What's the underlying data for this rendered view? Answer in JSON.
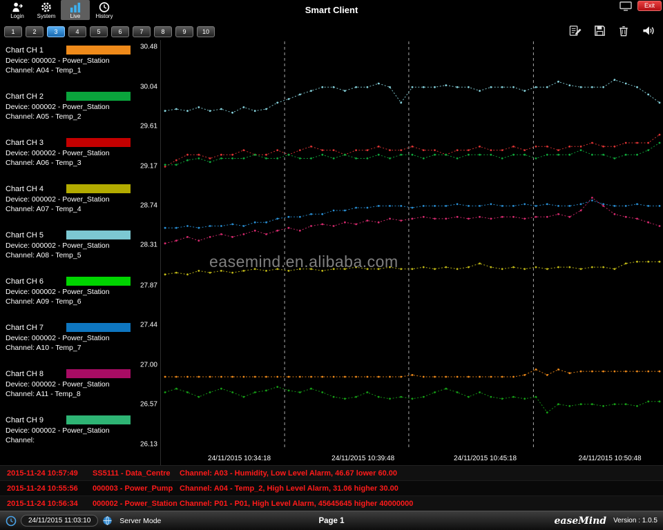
{
  "topbar": {
    "title": "Smart Client",
    "nav": [
      {
        "label": "Login",
        "icon": "login-icon",
        "active": false
      },
      {
        "label": "System",
        "icon": "system-icon",
        "active": false
      },
      {
        "label": "Live",
        "icon": "live-icon",
        "active": true
      },
      {
        "label": "History",
        "icon": "history-icon",
        "active": false
      }
    ],
    "exit_label": "Exit"
  },
  "toolbar": {
    "pages": [
      "1",
      "2",
      "3",
      "4",
      "5",
      "6",
      "7",
      "8",
      "9",
      "10"
    ],
    "active_index": 2,
    "icons": [
      "edit-icon",
      "save-icon",
      "delete-icon",
      "audio-icon"
    ]
  },
  "sidebar": {
    "channels": [
      {
        "title": "Chart CH 1",
        "device": "Device: 000002 - Power_Station",
        "channel": "Channel: A04 - Temp_1",
        "color": "#ef8a1a"
      },
      {
        "title": "Chart CH 2",
        "device": "Device: 000002 - Power_Station",
        "channel": "Channel: A05 - Temp_2",
        "color": "#0aa43c"
      },
      {
        "title": "Chart CH 3",
        "device": "Device: 000002 - Power_Station",
        "channel": "Channel: A06 - Temp_3",
        "color": "#c40000"
      },
      {
        "title": "Chart CH 4",
        "device": "Device: 000002 - Power_Station",
        "channel": "Channel: A07 - Temp_4",
        "color": "#b3ab00"
      },
      {
        "title": "Chart CH 5",
        "device": "Device: 000002 - Power_Station",
        "channel": "Channel: A08 - Temp_5",
        "color": "#7cc8d2"
      },
      {
        "title": "Chart CH 6",
        "device": "Device: 000002 - Power_Station",
        "channel": "Channel: A09 - Temp_6",
        "color": "#00d400"
      },
      {
        "title": "Chart CH 7",
        "device": "Device: 000002 - Power_Station",
        "channel": "Channel: A10 - Temp_7",
        "color": "#0e76c0"
      },
      {
        "title": "Chart CH 8",
        "device": "Device: 000002 - Power_Station",
        "channel": "Channel: A11 - Temp_8",
        "color": "#a80c64"
      },
      {
        "title": "Chart CH 9",
        "device": "Device: 000002 - Power_Station",
        "channel": "Channel:",
        "color": "#2eb474"
      }
    ]
  },
  "chart_data": {
    "type": "line",
    "watermark": "easemind.en.alibaba.com",
    "ylim": [
      26.13,
      30.48
    ],
    "y_ticks": [
      30.48,
      30.04,
      29.61,
      29.17,
      28.74,
      28.31,
      27.87,
      27.44,
      27.0,
      26.57,
      26.13
    ],
    "x_gridlines": [
      0.246,
      0.493,
      0.741
    ],
    "x_ticks": [
      {
        "label": "24/11/2015 10:34:18",
        "pos": 0.156
      },
      {
        "label": "24/11/2015 10:39:48",
        "pos": 0.402
      },
      {
        "label": "24/11/2015 10:45:18",
        "pos": 0.645
      },
      {
        "label": "24/11/2015 10:50:48",
        "pos": 0.893
      }
    ],
    "series": [
      {
        "name": "A08 - Temp_5",
        "color": "#86d2dc",
        "values": [
          29.78,
          29.8,
          29.78,
          29.82,
          29.78,
          29.8,
          29.76,
          29.82,
          29.78,
          29.8,
          29.87,
          29.91,
          29.96,
          30.0,
          30.04,
          30.04,
          30.0,
          30.04,
          30.04,
          30.08,
          30.04,
          29.87,
          30.04,
          30.04,
          30.04,
          30.06,
          30.04,
          30.04,
          30.0,
          30.04,
          30.04,
          30.04,
          30.0,
          30.04,
          30.04,
          30.1,
          30.06,
          30.04,
          30.04,
          30.04,
          30.12,
          30.08,
          30.04,
          29.96,
          29.87
        ]
      },
      {
        "name": "A06 - Temp_3",
        "color": "#e03434",
        "values": [
          29.17,
          29.24,
          29.3,
          29.3,
          29.26,
          29.3,
          29.3,
          29.35,
          29.3,
          29.3,
          29.35,
          29.3,
          29.35,
          29.39,
          29.35,
          29.35,
          29.3,
          29.35,
          29.35,
          29.39,
          29.35,
          29.35,
          29.39,
          29.35,
          29.35,
          29.3,
          29.35,
          29.35,
          29.39,
          29.35,
          29.35,
          29.39,
          29.35,
          29.39,
          29.39,
          29.35,
          29.39,
          29.39,
          29.43,
          29.39,
          29.39,
          29.43,
          29.43,
          29.43,
          29.52
        ]
      },
      {
        "name": "A05 - Temp_2",
        "color": "#10a93c",
        "values": [
          29.19,
          29.19,
          29.24,
          29.26,
          29.22,
          29.26,
          29.26,
          29.26,
          29.3,
          29.26,
          29.26,
          29.3,
          29.26,
          29.26,
          29.3,
          29.26,
          29.3,
          29.26,
          29.26,
          29.3,
          29.26,
          29.3,
          29.3,
          29.26,
          29.3,
          29.3,
          29.26,
          29.3,
          29.3,
          29.3,
          29.26,
          29.3,
          29.3,
          29.26,
          29.3,
          29.3,
          29.3,
          29.35,
          29.3,
          29.3,
          29.26,
          29.3,
          29.3,
          29.35,
          29.43
        ]
      },
      {
        "name": "A10 - Temp_7",
        "color": "#2a8fd4",
        "values": [
          28.5,
          28.5,
          28.52,
          28.5,
          28.52,
          28.52,
          28.54,
          28.52,
          28.56,
          28.56,
          28.6,
          28.62,
          28.62,
          28.65,
          28.65,
          28.69,
          28.69,
          28.72,
          28.72,
          28.74,
          28.74,
          28.74,
          28.72,
          28.74,
          28.74,
          28.74,
          28.76,
          28.74,
          28.74,
          28.76,
          28.74,
          28.74,
          28.76,
          28.74,
          28.76,
          28.74,
          28.74,
          28.76,
          28.8,
          28.76,
          28.74,
          28.74,
          28.76,
          28.74,
          28.74
        ]
      },
      {
        "name": "A11 - Temp_8",
        "color": "#d62a6e",
        "values": [
          28.33,
          28.36,
          28.4,
          28.36,
          28.4,
          28.43,
          28.4,
          28.43,
          28.47,
          28.43,
          28.47,
          28.5,
          28.47,
          28.52,
          28.54,
          28.52,
          28.56,
          28.54,
          28.58,
          28.56,
          28.6,
          28.58,
          28.6,
          28.62,
          28.6,
          28.6,
          28.62,
          28.6,
          28.62,
          28.6,
          28.62,
          28.62,
          28.6,
          28.62,
          28.62,
          28.65,
          28.62,
          28.69,
          28.83,
          28.74,
          28.65,
          28.62,
          28.6,
          28.56,
          28.52
        ]
      },
      {
        "name": "A07 - Temp_4",
        "color": "#c3bb17",
        "values": [
          27.99,
          28.01,
          27.99,
          28.03,
          28.01,
          28.03,
          28.01,
          28.03,
          28.05,
          28.03,
          28.05,
          28.03,
          28.05,
          28.05,
          28.03,
          28.05,
          28.05,
          28.07,
          28.05,
          28.05,
          28.07,
          28.05,
          28.05,
          28.07,
          28.05,
          28.07,
          28.05,
          28.07,
          28.11,
          28.07,
          28.05,
          28.07,
          28.05,
          28.07,
          28.05,
          28.07,
          28.07,
          28.05,
          28.07,
          28.07,
          28.05,
          28.11,
          28.13,
          28.13,
          28.13
        ]
      },
      {
        "name": "A04 - Temp_1",
        "color": "#ef8a1a",
        "values": [
          26.87,
          26.87,
          26.87,
          26.87,
          26.87,
          26.87,
          26.87,
          26.87,
          26.87,
          26.87,
          26.87,
          26.87,
          26.87,
          26.87,
          26.87,
          26.87,
          26.87,
          26.87,
          26.87,
          26.87,
          26.87,
          26.87,
          26.89,
          26.87,
          26.87,
          26.87,
          26.87,
          26.87,
          26.87,
          26.87,
          26.87,
          26.87,
          26.89,
          26.95,
          26.89,
          26.95,
          26.91,
          26.93,
          26.93,
          26.93,
          26.93,
          26.93,
          26.93,
          26.93,
          26.93
        ]
      },
      {
        "name": "A09 - Temp_6",
        "color": "#17a017",
        "values": [
          26.7,
          26.74,
          26.7,
          26.65,
          26.7,
          26.74,
          26.7,
          26.65,
          26.7,
          26.72,
          26.76,
          26.72,
          26.7,
          26.74,
          26.7,
          26.65,
          26.63,
          26.65,
          26.7,
          26.65,
          26.63,
          26.65,
          26.63,
          26.65,
          26.7,
          26.74,
          26.7,
          26.65,
          26.7,
          26.65,
          26.63,
          26.65,
          26.63,
          26.65,
          26.48,
          26.57,
          26.55,
          26.57,
          26.57,
          26.55,
          26.57,
          26.57,
          26.55,
          26.6,
          26.6
        ]
      }
    ]
  },
  "alarms": [
    {
      "time": "2015-11-24 10:57:49",
      "device": "SS5111 - Data_Centre",
      "message": "Channel: A03 - Humidity, Low Level Alarm, 46.67 lower 60.00"
    },
    {
      "time": "2015-11-24 10:55:56",
      "device": "000003 - Power_Pump",
      "message": "Channel: A04 - Temp_2, High Level Alarm, 31.06 higher 30.00"
    },
    {
      "time": "2015-11-24 10:56:34",
      "device": "000002 - Power_Station",
      "message": "Channel: P01 - P01, High Level Alarm, 45645645 higher 40000000"
    }
  ],
  "statusbar": {
    "datetime": "24/11/2015 11:03:10",
    "mode": "Server Mode",
    "page": "Page 1",
    "logo": "easeMind",
    "version": "Version : 1.0.5"
  }
}
